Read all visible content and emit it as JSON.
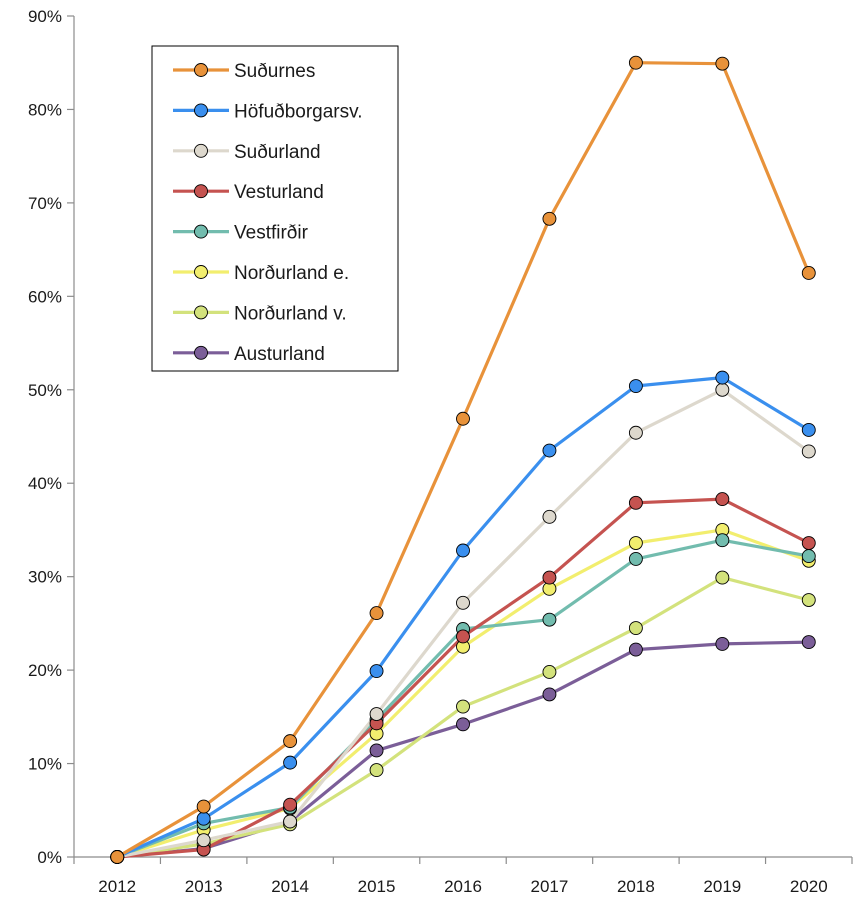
{
  "chart_data": {
    "type": "line",
    "title": "",
    "xlabel": "",
    "ylabel": "",
    "x": [
      "2012",
      "2013",
      "2014",
      "2015",
      "2016",
      "2017",
      "2018",
      "2019",
      "2020"
    ],
    "ylim": [
      0,
      90
    ],
    "yticks": [
      "0%",
      "10%",
      "20%",
      "30%",
      "40%",
      "50%",
      "60%",
      "70%",
      "80%",
      "90%"
    ],
    "grid": false,
    "legend": "top-left",
    "series": [
      {
        "name": "Suðurnes",
        "color": "#E8923A",
        "values": [
          0,
          5.4,
          12.4,
          26.1,
          46.9,
          68.3,
          85.0,
          84.9,
          62.5
        ]
      },
      {
        "name": "Höfuðborgarsv.",
        "color": "#3A8FEE",
        "values": [
          0,
          4.1,
          10.1,
          19.9,
          32.8,
          43.5,
          50.4,
          51.3,
          45.7
        ]
      },
      {
        "name": "Suðurland",
        "color": "#DDD8CD",
        "values": [
          0,
          1.8,
          3.8,
          15.3,
          27.2,
          36.4,
          45.4,
          50.0,
          43.4
        ]
      },
      {
        "name": "Vesturland",
        "color": "#C55350",
        "values": [
          0,
          0.8,
          5.6,
          14.3,
          23.6,
          29.9,
          37.9,
          38.3,
          33.6
        ]
      },
      {
        "name": "Vestfirðir",
        "color": "#72BCAE",
        "values": [
          0,
          3.6,
          5.3,
          14.7,
          24.4,
          25.4,
          31.9,
          33.9,
          32.2
        ]
      },
      {
        "name": "Norðurland e.",
        "color": "#F2EE6E",
        "values": [
          0,
          2.9,
          5.2,
          13.2,
          22.5,
          28.7,
          33.6,
          35.0,
          31.7
        ]
      },
      {
        "name": "Norðurland v.",
        "color": "#D3E27C",
        "values": [
          0,
          1.4,
          3.5,
          9.3,
          16.1,
          19.8,
          24.5,
          29.9,
          27.5
        ]
      },
      {
        "name": "Austurland",
        "color": "#7B5E98",
        "values": [
          0,
          0.9,
          3.8,
          11.4,
          14.2,
          17.4,
          22.2,
          22.8,
          23.0
        ]
      }
    ]
  }
}
